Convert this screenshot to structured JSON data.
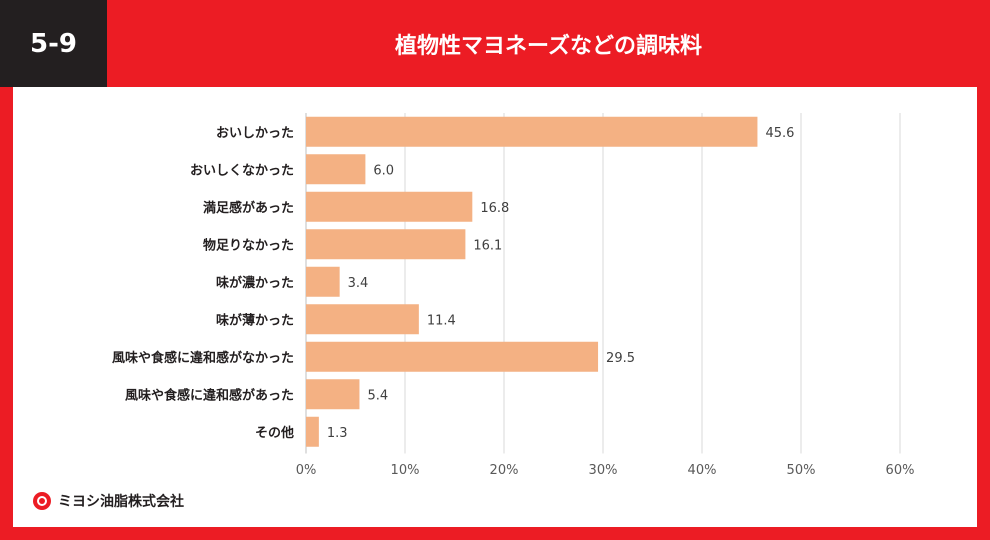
{
  "header": {
    "badge": "5-9",
    "title": "植物性マヨネーズなどの調味料"
  },
  "chart_data": {
    "type": "bar",
    "orientation": "horizontal",
    "categories": [
      "おいしかった",
      "おいしくなかった",
      "満足感があった",
      "物足りなかった",
      "味が濃かった",
      "味が薄かった",
      "風味や食感に違和感がなかった",
      "風味や食感に違和感があった",
      "その他"
    ],
    "values": [
      45.6,
      6.0,
      16.8,
      16.1,
      3.4,
      11.4,
      29.5,
      5.4,
      1.3
    ],
    "value_labels": [
      "45.6",
      "6.0",
      "16.8",
      "16.1",
      "3.4",
      "11.4",
      "29.5",
      "5.4",
      "1.3"
    ],
    "xlim": [
      0,
      60
    ],
    "x_ticks": [
      0,
      10,
      20,
      30,
      40,
      50,
      60
    ],
    "x_tick_labels": [
      "0%",
      "10%",
      "20%",
      "30%",
      "40%",
      "50%",
      "60%"
    ],
    "bar_color": "#f4b183",
    "grid": true
  },
  "footer": {
    "company": "ミヨシ油脂株式会社"
  },
  "colors": {
    "brand_red": "#ec1c24",
    "badge_dark": "#231f20",
    "grid": "#d9d9d9"
  }
}
